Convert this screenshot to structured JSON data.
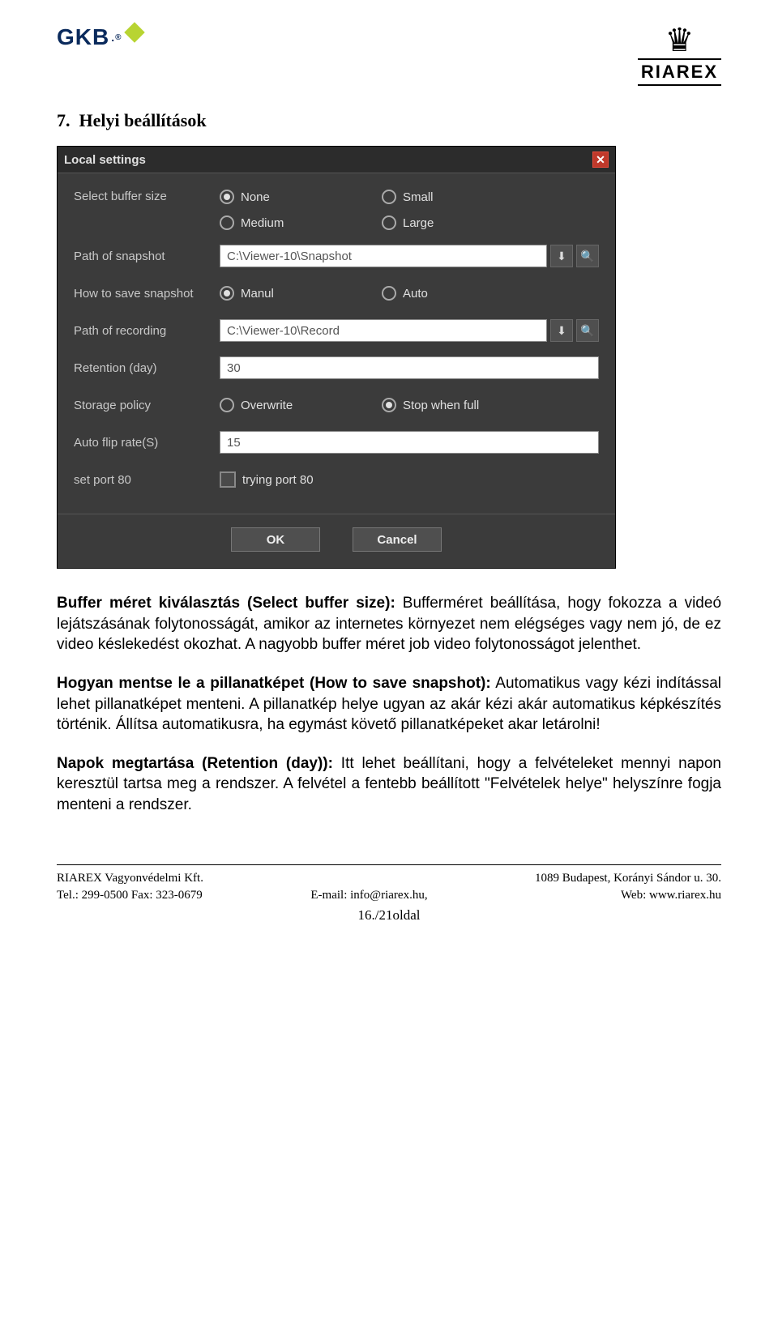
{
  "logos": {
    "gkb": "GKB",
    "riarex": "RIAREX"
  },
  "section": {
    "number": "7.",
    "title": "Helyi beállítások"
  },
  "dialog": {
    "title": "Local settings",
    "background_color": "#3b3b3b",
    "titlebar_color": "#2c2c2c",
    "text_color": "#c8c8c8",
    "close_color": "#c0392b",
    "buffer": {
      "label": "Select buffer size",
      "options": [
        {
          "label": "None",
          "checked": true
        },
        {
          "label": "Small",
          "checked": false
        },
        {
          "label": "Medium",
          "checked": false
        },
        {
          "label": "Large",
          "checked": false
        }
      ]
    },
    "snapshot_path": {
      "label": "Path of snapshot",
      "value": "C:\\Viewer-10\\Snapshot"
    },
    "save_snapshot": {
      "label": "How to save snapshot",
      "options": [
        {
          "label": "Manul",
          "checked": true
        },
        {
          "label": "Auto",
          "checked": false
        }
      ]
    },
    "recording_path": {
      "label": "Path of recording",
      "value": "C:\\Viewer-10\\Record"
    },
    "retention": {
      "label": "Retention (day)",
      "value": "30"
    },
    "storage_policy": {
      "label": "Storage policy",
      "options": [
        {
          "label": "Overwrite",
          "checked": false
        },
        {
          "label": "Stop when full",
          "checked": true
        }
      ]
    },
    "flip_rate": {
      "label": "Auto flip rate(S)",
      "value": "15"
    },
    "port80": {
      "label": "set port 80",
      "checkbox_label": "trying port 80",
      "checked": false
    },
    "buttons": {
      "ok": "OK",
      "cancel": "Cancel"
    }
  },
  "paragraphs": {
    "p1_lead": "Buffer méret kiválasztás (Select buffer size):",
    "p1_rest": " Bufferméret beállítása, hogy fokozza a videó lejátszásának folytonosságát, amikor az internetes környezet nem elégséges vagy nem jó, de ez video késlekedést okozhat. A nagyobb buffer méret job video folytonosságot jelenthet.",
    "p2_lead": "Hogyan mentse le a pillanatképet (How to save snapshot):",
    "p2_rest": " Automatikus vagy kézi indítással lehet pillanatképet menteni. A pillanatkép helye ugyan az akár kézi akár automatikus képkészítés történik. Állítsa automatikusra, ha egymást követő pillanatképeket akar letárolni!",
    "p3_lead": "Napok megtartása (Retention (day)):",
    "p3_rest": " Itt lehet beállítani, hogy a felvételeket mennyi napon keresztül tartsa meg a rendszer. A felvétel a fentebb beállított \"Felvételek helye\" helyszínre fogja menteni a rendszer."
  },
  "footer": {
    "left1": "RIAREX   Vagyonvédelmi Kft.",
    "left2": "Tel.: 299-0500          Fax: 323-0679",
    "mid1": "",
    "mid2": "E-mail: info@riarex.hu,",
    "right1": "1089 Budapest, Korányi Sándor u. 30.",
    "right2": "Web: www.riarex.hu",
    "page": "16./21oldal"
  }
}
